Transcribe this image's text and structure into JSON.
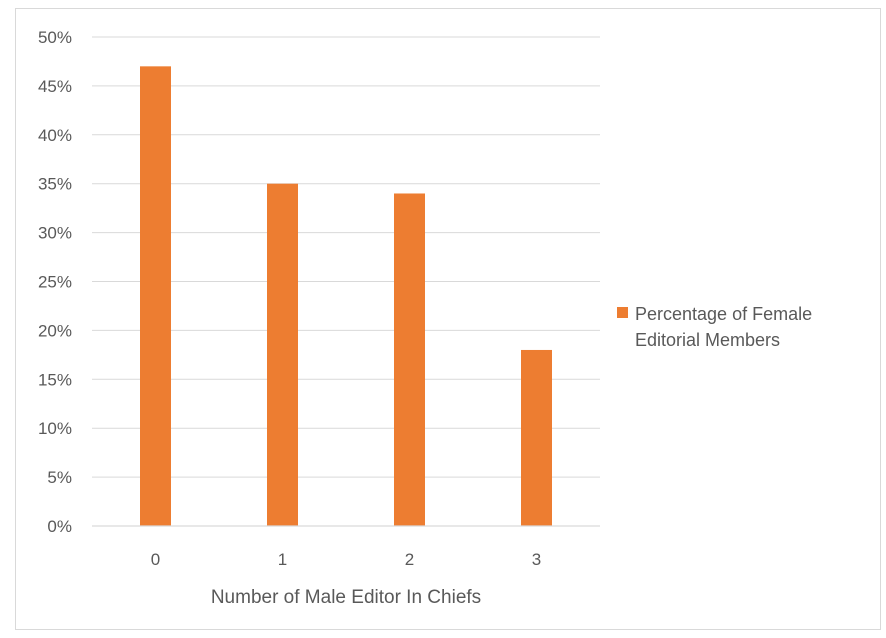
{
  "chart_data": {
    "type": "bar",
    "categories": [
      "0",
      "1",
      "2",
      "3"
    ],
    "series": [
      {
        "name": "Percentage of Female Editorial Members",
        "values": [
          47,
          35,
          34,
          18
        ],
        "color": "#ED7D31"
      }
    ],
    "xlabel": "Number of Male Editor In Chiefs",
    "ylabel": "",
    "ylim": [
      0,
      50
    ],
    "yticks": [
      "0%",
      "5%",
      "10%",
      "15%",
      "20%",
      "25%",
      "30%",
      "35%",
      "40%",
      "45%",
      "50%"
    ],
    "grid": true,
    "legend": {
      "placement": "right",
      "lines": [
        "Percentage of Female",
        "Editorial Members"
      ]
    }
  }
}
